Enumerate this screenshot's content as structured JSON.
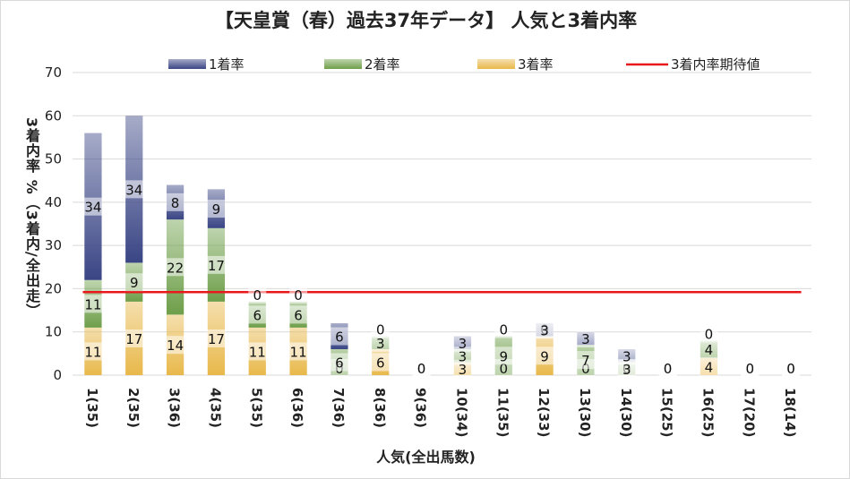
{
  "chart_data": {
    "type": "bar",
    "stacked": true,
    "title": "【天皇賞（春）過去37年データ】 人気と3着内率",
    "xlabel": "人気(全出馬数)",
    "ylabel": "3着内率 %（3着内/全出走）",
    "ylim": [
      0,
      70
    ],
    "yticks": [
      0,
      10,
      20,
      30,
      40,
      50,
      60,
      70
    ],
    "grid": true,
    "legend_position": "top",
    "categories": [
      "1(35)",
      "2(35)",
      "3(36)",
      "4(35)",
      "5(35)",
      "6(36)",
      "7(36)",
      "8(36)",
      "9(36)",
      "10(34)",
      "11(35)",
      "12(33)",
      "13(30)",
      "14(30)",
      "15(25)",
      "16(25)",
      "17(20)",
      "18(14)"
    ],
    "series": [
      {
        "name": "3着率",
        "color": "#e8b84a",
        "values": [
          11,
          17,
          14,
          17,
          11,
          11,
          0,
          6,
          0,
          3,
          0,
          9,
          0,
          0,
          0,
          4,
          0,
          0
        ]
      },
      {
        "name": "2着率",
        "color": "#6e9f4a",
        "values": [
          11,
          9,
          22,
          17,
          6,
          6,
          6,
          3,
          0,
          3,
          9,
          0,
          7,
          3,
          0,
          4,
          0,
          0
        ]
      },
      {
        "name": "1着率",
        "color": "#3a4585",
        "values": [
          34,
          34,
          8,
          9,
          0,
          0,
          6,
          0,
          0,
          3,
          0,
          3,
          3,
          3,
          0,
          0,
          0,
          0
        ]
      }
    ],
    "reference_line": {
      "name": "3着内率期待値",
      "color": "#e8191c",
      "value": 19.2
    }
  }
}
